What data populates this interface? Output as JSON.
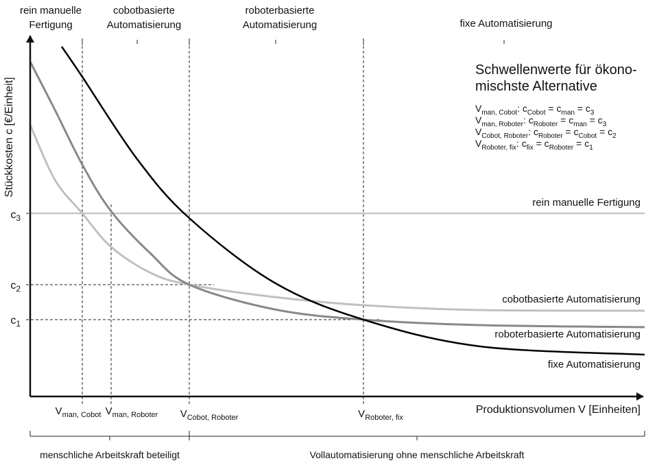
{
  "top_regions": [
    [
      "rein manuelle",
      "Fertigung"
    ],
    [
      "cobotbasierte",
      "Automatisierung"
    ],
    [
      "roboterbasierte",
      "Automatisierung"
    ],
    [
      "fixe Automatisierung"
    ]
  ],
  "y_axis_label": "Stückkosten c [€/Einheit]",
  "x_axis_label": "Produktionsvolumen V [Einheiten]",
  "y_markers": [
    [
      "c",
      "3"
    ],
    [
      "c",
      "2"
    ],
    [
      "c",
      "1"
    ]
  ],
  "x_markers": [
    [
      "V",
      "man, Cobot"
    ],
    [
      "V",
      "man, Roboter"
    ],
    [
      "V",
      "Cobot, Roboter"
    ],
    [
      "V",
      "Roboter, fix"
    ]
  ],
  "curves": [
    "rein manuelle Fertigung",
    "cobotbasierte Automatisierung",
    "roboterbasierte Automatisierung",
    "fixe Automatisierung"
  ],
  "threshold_box": {
    "title": [
      "Schwellenwerte für ökono-",
      "mischste Alternative"
    ],
    "rows": [
      [
        "V",
        "man, Cobot",
        ": c",
        "Cobot",
        " = c",
        "man",
        " = c",
        "3"
      ],
      [
        "V",
        "man, Roboter",
        ": c",
        "Roboter",
        " = c",
        "man",
        " = c",
        "3"
      ],
      [
        "V",
        "Cobot, Roboter",
        ": c",
        "Roboter",
        " = c",
        "Cobot",
        " = c",
        "2"
      ],
      [
        "V",
        "Roboter, fix",
        ": c",
        "fix",
        " = c",
        "Roboter",
        " = c",
        "1"
      ]
    ]
  },
  "bottom_groups": [
    "menschliche Arbeitskraft beteiligt",
    "Vollautomatisierung ohne menschliche Arbeitskraft"
  ]
}
